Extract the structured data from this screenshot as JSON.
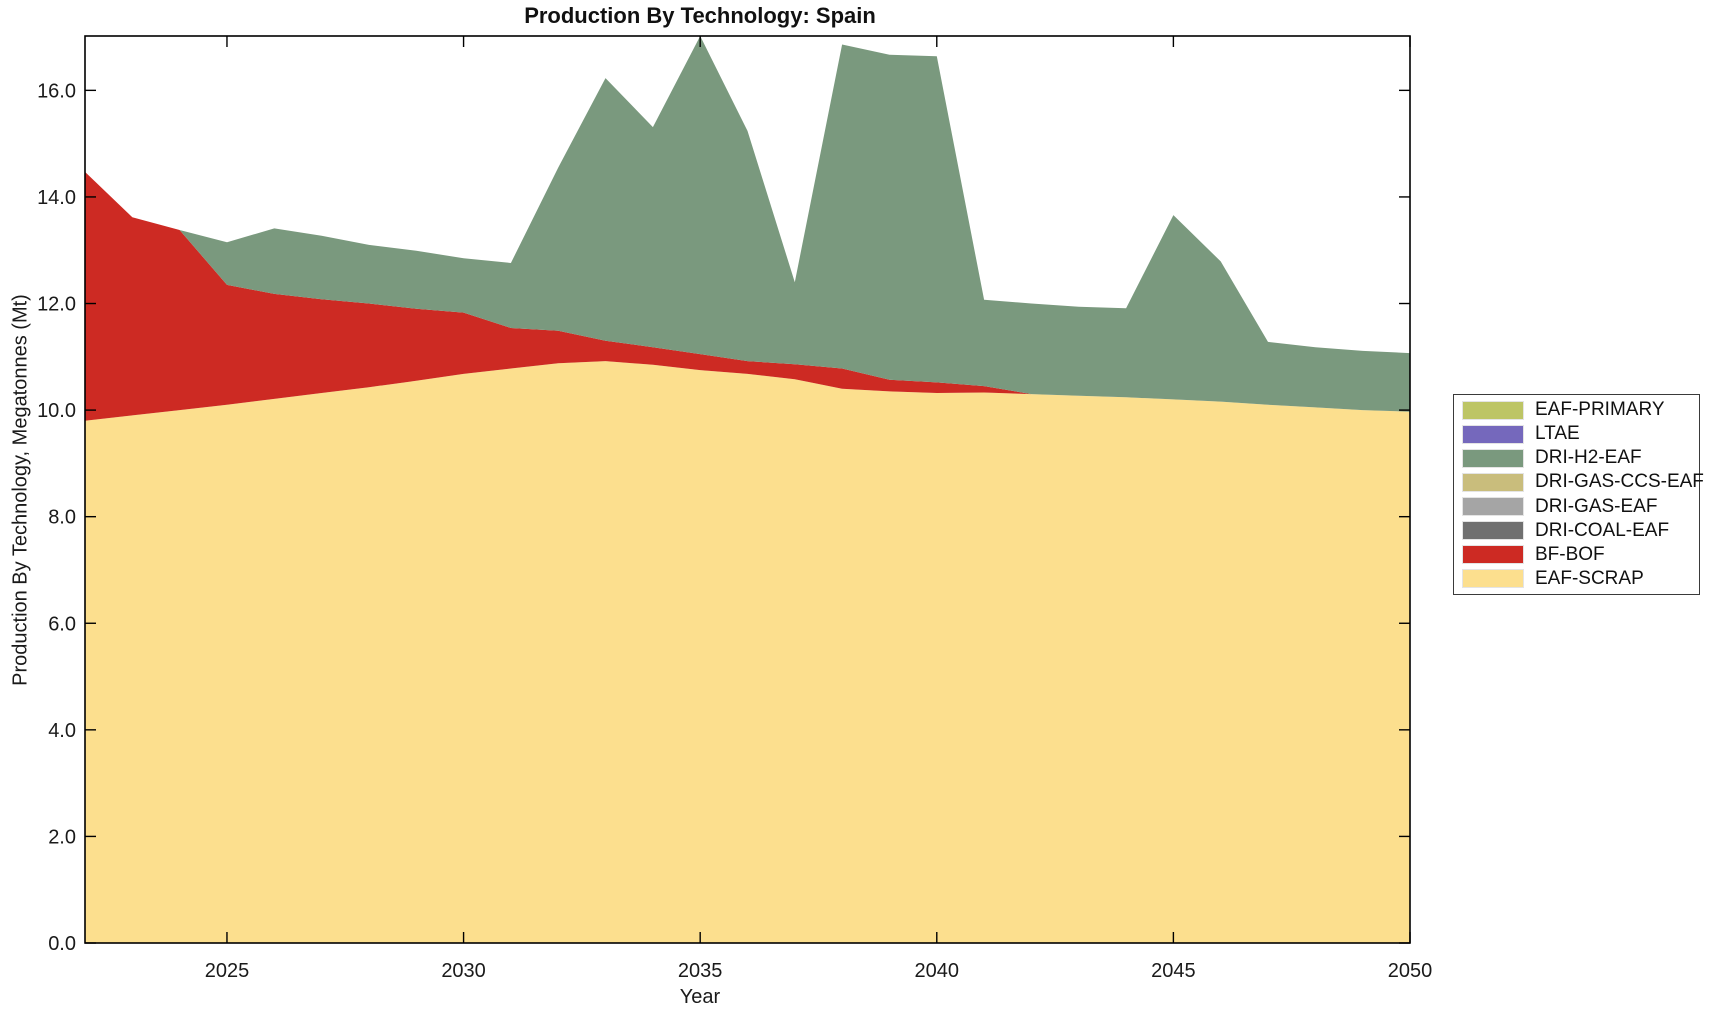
{
  "title": "Production By Technology: Spain",
  "chart_data": {
    "type": "area",
    "stacked": true,
    "title": "Production By Technology: Spain",
    "xlabel": "Year",
    "ylabel": "Production By Technology, Megatonnes (Mt)",
    "grid": false,
    "legend_position": "right-outside",
    "xlim": [
      2022,
      2050
    ],
    "ylim": [
      0,
      17.02
    ],
    "xticks": [
      2025,
      2030,
      2035,
      2040,
      2045,
      2050
    ],
    "xtick_labels": [
      "2025",
      "2030",
      "2035",
      "2040",
      "2045",
      "2050"
    ],
    "yticks": [
      0,
      2,
      4,
      6,
      8,
      10,
      12,
      14,
      16
    ],
    "ytick_labels": [
      "0.0",
      "2.0",
      "4.0",
      "6.0",
      "8.0",
      "10.0",
      "12.0",
      "14.0",
      "16.0"
    ],
    "x": [
      2022,
      2023,
      2024,
      2025,
      2026,
      2027,
      2028,
      2029,
      2030,
      2031,
      2032,
      2033,
      2034,
      2035,
      2036,
      2037,
      2038,
      2039,
      2040,
      2041,
      2042,
      2043,
      2044,
      2045,
      2046,
      2047,
      2048,
      2049,
      2050
    ],
    "series": [
      {
        "name": "EAF-SCRAP",
        "color": "#fcdf8e",
        "values": [
          9.8,
          9.9,
          10.0,
          10.1,
          10.21,
          10.32,
          10.43,
          10.55,
          10.68,
          10.78,
          10.88,
          10.92,
          10.85,
          10.75,
          10.68,
          10.58,
          10.4,
          10.35,
          10.32,
          10.33,
          10.3,
          10.27,
          10.24,
          10.2,
          10.16,
          10.1,
          10.05,
          10.0,
          9.97
        ]
      },
      {
        "name": "BF-BOF",
        "color": "#cd2a23",
        "values": [
          4.67,
          3.72,
          3.38,
          2.25,
          1.97,
          1.76,
          1.57,
          1.35,
          1.15,
          0.76,
          0.61,
          0.38,
          0.33,
          0.3,
          0.24,
          0.28,
          0.38,
          0.22,
          0.2,
          0.12,
          0,
          0,
          0,
          0,
          0,
          0,
          0,
          0,
          0
        ]
      },
      {
        "name": "DRI-COAL-EAF",
        "color": "#707070",
        "values": [
          0,
          0,
          0,
          0,
          0,
          0,
          0,
          0,
          0,
          0,
          0,
          0,
          0,
          0,
          0,
          0,
          0,
          0,
          0,
          0,
          0,
          0,
          0,
          0,
          0,
          0,
          0,
          0,
          0
        ]
      },
      {
        "name": "DRI-GAS-EAF",
        "color": "#a5a5a5",
        "values": [
          0,
          0,
          0,
          0,
          0,
          0,
          0,
          0,
          0,
          0,
          0,
          0,
          0,
          0,
          0,
          0,
          0,
          0,
          0,
          0,
          0,
          0,
          0,
          0,
          0,
          0,
          0,
          0,
          0
        ]
      },
      {
        "name": "DRI-GAS-CCS-EAF",
        "color": "#c9bd7c",
        "values": [
          0,
          0,
          0,
          0,
          0,
          0,
          0,
          0,
          0,
          0,
          0,
          0,
          0,
          0,
          0,
          0,
          0,
          0,
          0,
          0,
          0,
          0,
          0,
          0,
          0,
          0,
          0,
          0,
          0
        ]
      },
      {
        "name": "DRI-H2-EAF",
        "color": "#7a997e",
        "values": [
          0,
          0,
          0,
          0.8,
          1.23,
          1.19,
          1.1,
          1.09,
          1.02,
          1.22,
          3.06,
          4.93,
          4.13,
          5.97,
          4.32,
          1.54,
          6.08,
          6.1,
          6.12,
          1.62,
          1.7,
          1.67,
          1.67,
          3.46,
          2.63,
          1.18,
          1.13,
          1.11,
          1.1
        ]
      },
      {
        "name": "LTAE",
        "color": "#7568bc",
        "values": [
          0,
          0,
          0,
          0,
          0,
          0,
          0,
          0,
          0,
          0,
          0,
          0,
          0,
          0,
          0,
          0,
          0,
          0,
          0,
          0,
          0,
          0,
          0,
          0,
          0,
          0,
          0,
          0,
          0
        ]
      },
      {
        "name": "EAF-PRIMARY",
        "color": "#bdc565",
        "values": [
          0,
          0,
          0,
          0,
          0,
          0,
          0,
          0,
          0,
          0,
          0,
          0,
          0,
          0,
          0,
          0,
          0,
          0,
          0,
          0,
          0,
          0,
          0,
          0,
          0,
          0,
          0,
          0,
          0
        ]
      }
    ]
  },
  "legend": {
    "items": [
      {
        "label": "EAF-PRIMARY",
        "color": "#bdc565"
      },
      {
        "label": "LTAE",
        "color": "#7568bc"
      },
      {
        "label": "DRI-H2-EAF",
        "color": "#7a997e"
      },
      {
        "label": "DRI-GAS-CCS-EAF",
        "color": "#c9bd7c"
      },
      {
        "label": "DRI-GAS-EAF",
        "color": "#a5a5a5"
      },
      {
        "label": "DRI-COAL-EAF",
        "color": "#707070"
      },
      {
        "label": "BF-BOF",
        "color": "#cd2a23"
      },
      {
        "label": "EAF-SCRAP",
        "color": "#fcdf8e"
      }
    ]
  }
}
